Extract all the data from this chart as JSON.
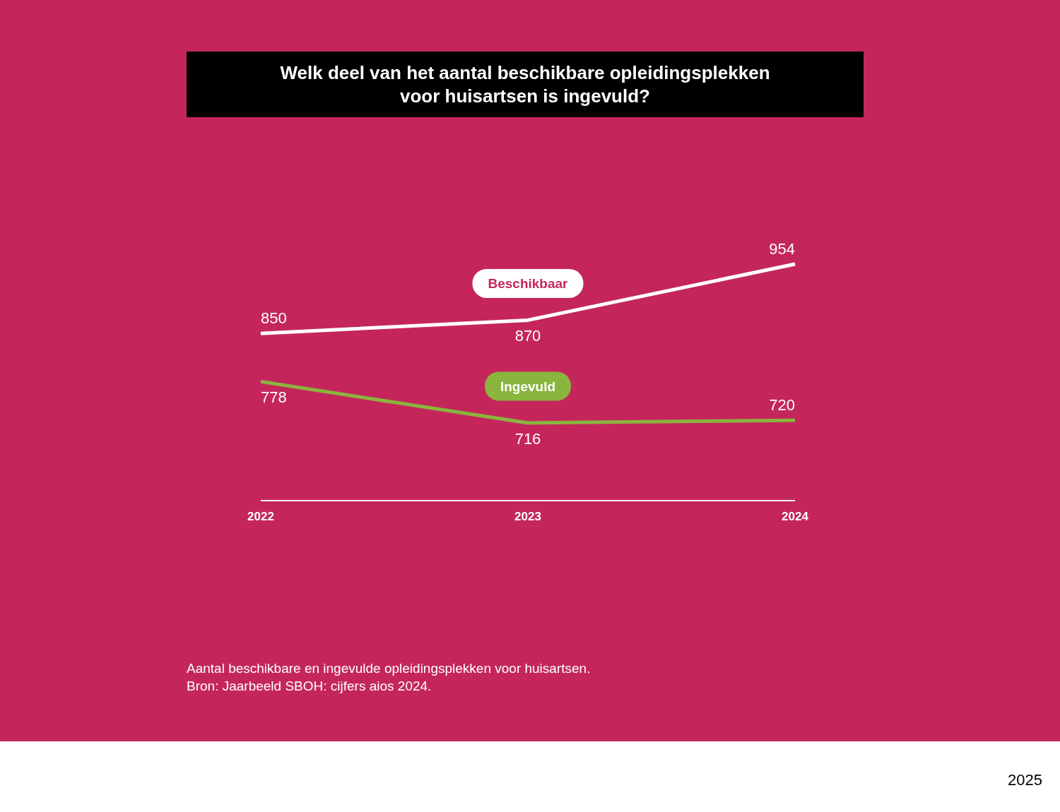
{
  "chart_data": {
    "type": "line",
    "title": "Welk deel van het aantal beschikbare opleidingsplekken voor huisartsen is ingevuld?",
    "categories": [
      "2022",
      "2023",
      "2024"
    ],
    "series": [
      {
        "name": "Beschikbaar",
        "color": "#ffffff",
        "values": [
          850,
          870,
          954
        ]
      },
      {
        "name": "Ingevuld",
        "color": "#8ab53e",
        "values": [
          778,
          716,
          720
        ]
      }
    ],
    "data_labels": true,
    "annotations": [
      "Aantal beschikbare en ingevulde opleidingsplekken voor huisartsen.",
      "Bron: Jaarbeeld SBOH: cijfers aios 2024.",
      "2025"
    ]
  }
}
